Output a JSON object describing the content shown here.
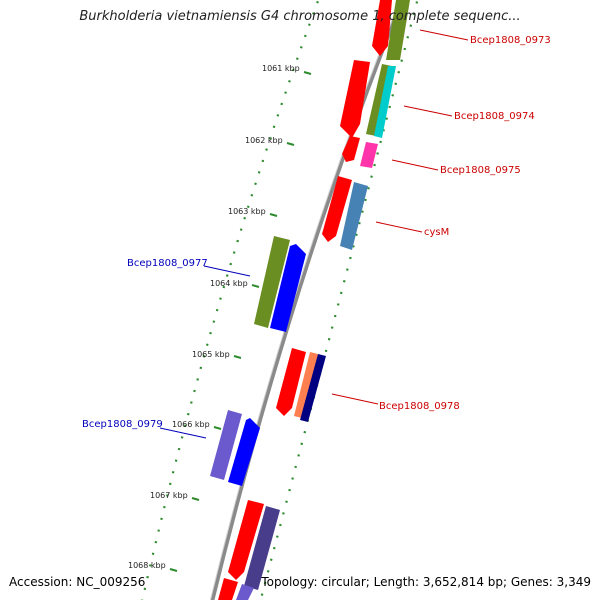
{
  "title": "Burkholderia vietnamiensis G4 chromosome 1, complete sequenc...",
  "footer": {
    "accession": "Accession: NC_009256",
    "summary": "Topology: circular; Length: 3,652,814 bp; Genes: 3,349"
  },
  "scale": {
    "unit": "kbp",
    "ticks": [
      {
        "label": "1061 kbp"
      },
      {
        "label": "1062 kbp"
      },
      {
        "label": "1063 kbp"
      },
      {
        "label": "1064 kbp"
      },
      {
        "label": "1065 kbp"
      },
      {
        "label": "1066 kbp"
      },
      {
        "label": "1067 kbp"
      },
      {
        "label": "1068 kbp"
      }
    ]
  },
  "gene_labels": [
    {
      "name": "Bcep1808_0973",
      "color": "#cc0000"
    },
    {
      "name": "Bcep1808_0974",
      "color": "#cc0000"
    },
    {
      "name": "Bcep1808_0975",
      "color": "#cc0000"
    },
    {
      "name": "cysM",
      "color": "#cc0000"
    },
    {
      "name": "Bcep1808_0977",
      "color": "#0000bb"
    },
    {
      "name": "Bcep1808_0978",
      "color": "#cc0000"
    },
    {
      "name": "Bcep1808_0979",
      "color": "#0000bb"
    }
  ],
  "colors": {
    "backbone": "#8a8a8a",
    "tick": "#2e8b2e",
    "red": "#ff0000",
    "olive": "#6b8e23",
    "cyan": "#00cccc",
    "magenta": "#ff33aa",
    "steelblue": "#4682b4",
    "blue": "#0000ff",
    "salmon": "#ff7f50",
    "navy": "#000080",
    "slateblue": "#6a5acd",
    "darkslateblue": "#483d8b"
  }
}
